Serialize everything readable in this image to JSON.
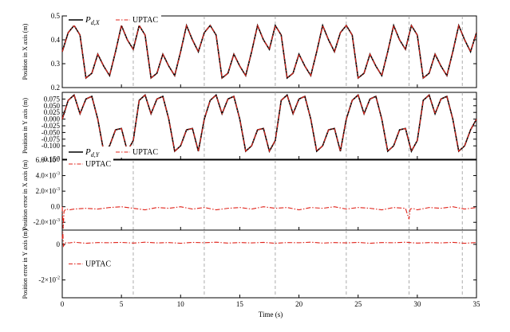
{
  "chart_data": [
    {
      "id": "px",
      "type": "line",
      "ylabel": "Position in X axis (m)",
      "xlim": [
        0,
        35
      ],
      "ylim": [
        0.2,
        0.5
      ],
      "yticks": [
        0.2,
        0.3,
        0.4,
        0.5
      ],
      "ytick_labels": [
        "0.2",
        "0.3",
        "0.4",
        "0.5"
      ],
      "legend": {
        "placement": "top-left",
        "entries": [
          {
            "sym": "P",
            "sub": "d,X",
            "style": "solid-black"
          },
          {
            "text": "UPTAC",
            "style": "dashdot-red"
          }
        ]
      },
      "series": [
        {
          "name": "Pd,X",
          "color": "#000000",
          "style": "solid",
          "x": [
            0,
            0.5,
            1,
            1.5,
            2,
            2.5,
            3,
            3.5,
            4,
            4.5,
            5,
            5.5,
            6,
            6.5,
            7,
            7.5,
            8,
            8.5,
            9,
            9.5,
            10,
            10.5,
            11,
            11.5,
            12,
            12.5,
            13,
            13.5,
            14,
            14.5,
            15,
            15.5,
            16,
            16.5,
            17,
            17.5,
            18,
            18.5,
            19,
            19.5,
            20,
            20.5,
            21,
            21.5,
            22,
            22.5,
            23,
            23.5,
            24,
            24.5,
            25,
            25.5,
            26,
            26.5,
            27,
            27.5,
            28,
            28.5,
            29,
            29.5,
            30,
            30.5,
            31,
            31.5,
            32,
            32.5,
            33,
            33.5,
            34,
            34.5,
            35
          ],
          "values": [
            0.35,
            0.43,
            0.46,
            0.42,
            0.24,
            0.26,
            0.34,
            0.29,
            0.25,
            0.35,
            0.46,
            0.4,
            0.36,
            0.46,
            0.42,
            0.24,
            0.26,
            0.34,
            0.29,
            0.25,
            0.35,
            0.46,
            0.4,
            0.35,
            0.43,
            0.46,
            0.42,
            0.24,
            0.26,
            0.34,
            0.29,
            0.25,
            0.35,
            0.46,
            0.4,
            0.36,
            0.46,
            0.42,
            0.24,
            0.26,
            0.34,
            0.29,
            0.25,
            0.35,
            0.46,
            0.4,
            0.35,
            0.43,
            0.46,
            0.42,
            0.24,
            0.26,
            0.34,
            0.29,
            0.25,
            0.35,
            0.46,
            0.4,
            0.36,
            0.46,
            0.42,
            0.24,
            0.26,
            0.34,
            0.29,
            0.25,
            0.35,
            0.46,
            0.4,
            0.35,
            0.43
          ]
        },
        {
          "name": "UPTAC",
          "color": "#e0241b",
          "style": "dashdot",
          "x": [
            0,
            0.5,
            1,
            1.5,
            2,
            2.5,
            3,
            3.5,
            4,
            4.5,
            5,
            5.5,
            6,
            6.5,
            7,
            7.5,
            8,
            8.5,
            9,
            9.5,
            10,
            10.5,
            11,
            11.5,
            12,
            12.5,
            13,
            13.5,
            14,
            14.5,
            15,
            15.5,
            16,
            16.5,
            17,
            17.5,
            18,
            18.5,
            19,
            19.5,
            20,
            20.5,
            21,
            21.5,
            22,
            22.5,
            23,
            23.5,
            24,
            24.5,
            25,
            25.5,
            26,
            26.5,
            27,
            27.5,
            28,
            28.5,
            29,
            29.5,
            30,
            30.5,
            31,
            31.5,
            32,
            32.5,
            33,
            33.5,
            34,
            34.5,
            35
          ],
          "values": [
            0.35,
            0.43,
            0.46,
            0.42,
            0.24,
            0.26,
            0.34,
            0.29,
            0.25,
            0.35,
            0.46,
            0.4,
            0.36,
            0.46,
            0.42,
            0.24,
            0.26,
            0.34,
            0.29,
            0.25,
            0.35,
            0.46,
            0.4,
            0.35,
            0.43,
            0.46,
            0.42,
            0.24,
            0.26,
            0.34,
            0.29,
            0.25,
            0.35,
            0.46,
            0.4,
            0.36,
            0.46,
            0.42,
            0.24,
            0.26,
            0.34,
            0.29,
            0.25,
            0.35,
            0.46,
            0.4,
            0.35,
            0.43,
            0.46,
            0.42,
            0.24,
            0.26,
            0.34,
            0.29,
            0.25,
            0.35,
            0.46,
            0.4,
            0.36,
            0.46,
            0.42,
            0.24,
            0.26,
            0.34,
            0.29,
            0.25,
            0.35,
            0.46,
            0.4,
            0.35,
            0.43
          ]
        }
      ]
    },
    {
      "id": "py",
      "type": "line",
      "ylabel": "Position in Y axis (m)",
      "xlim": [
        0,
        35
      ],
      "ylim": [
        -0.15,
        0.1
      ],
      "yticks": [
        -0.15,
        -0.1,
        -0.075,
        -0.05,
        -0.025,
        0,
        0.025,
        0.05,
        0.075
      ],
      "ytick_labels": [
        "-0.150",
        "-0.100",
        "-0.075",
        "-0.050",
        "-0.025",
        "0.000",
        "0.025",
        "0.050",
        "0.075"
      ],
      "legend": {
        "placement": "bottom-left",
        "entries": [
          {
            "sym": "P",
            "sub": "d,Y",
            "style": "solid-black"
          },
          {
            "text": "UPTAC",
            "style": "dashdot-red"
          }
        ]
      },
      "series": [
        {
          "name": "Pd,Y",
          "color": "#000000",
          "style": "solid",
          "x": [
            0,
            0.5,
            1,
            1.5,
            2,
            2.5,
            3,
            3.5,
            4,
            4.5,
            5,
            5.5,
            6,
            6.5,
            7,
            7.5,
            8,
            8.5,
            9,
            9.5,
            10,
            10.5,
            11,
            11.5,
            12,
            12.5,
            13,
            13.5,
            14,
            14.5,
            15,
            15.5,
            16,
            16.5,
            17,
            17.5,
            18,
            18.5,
            19,
            19.5,
            20,
            20.5,
            21,
            21.5,
            22,
            22.5,
            23,
            23.5,
            24,
            24.5,
            25,
            25.5,
            26,
            26.5,
            27,
            27.5,
            28,
            28.5,
            29,
            29.5,
            30,
            30.5,
            31,
            31.5,
            32,
            32.5,
            33,
            33.5,
            34,
            34.5,
            35
          ],
          "values": [
            0,
            0.07,
            0.09,
            0.02,
            0.075,
            0.085,
            0,
            -0.12,
            -0.1,
            -0.04,
            -0.035,
            -0.12,
            -0.08,
            0.07,
            0.09,
            0.02,
            0.075,
            0.085,
            0,
            -0.12,
            -0.1,
            -0.04,
            -0.035,
            -0.12,
            0,
            0.07,
            0.09,
            0.02,
            0.075,
            0.085,
            0,
            -0.12,
            -0.1,
            -0.04,
            -0.035,
            -0.12,
            -0.08,
            0.07,
            0.09,
            0.02,
            0.075,
            0.085,
            0,
            -0.12,
            -0.1,
            -0.04,
            -0.035,
            -0.12,
            0,
            0.07,
            0.09,
            0.02,
            0.075,
            0.085,
            0,
            -0.12,
            -0.1,
            -0.04,
            -0.035,
            -0.12,
            -0.08,
            0.07,
            0.09,
            0.02,
            0.075,
            0.085,
            0,
            -0.12,
            -0.1,
            -0.04,
            0
          ]
        },
        {
          "name": "UPTAC",
          "color": "#e0241b",
          "style": "dashdot",
          "x": [
            0,
            0.5,
            1,
            1.5,
            2,
            2.5,
            3,
            3.5,
            4,
            4.5,
            5,
            5.5,
            6,
            6.5,
            7,
            7.5,
            8,
            8.5,
            9,
            9.5,
            10,
            10.5,
            11,
            11.5,
            12,
            12.5,
            13,
            13.5,
            14,
            14.5,
            15,
            15.5,
            16,
            16.5,
            17,
            17.5,
            18,
            18.5,
            19,
            19.5,
            20,
            20.5,
            21,
            21.5,
            22,
            22.5,
            23,
            23.5,
            24,
            24.5,
            25,
            25.5,
            26,
            26.5,
            27,
            27.5,
            28,
            28.5,
            29,
            29.5,
            30,
            30.5,
            31,
            31.5,
            32,
            32.5,
            33,
            33.5,
            34,
            34.5,
            35
          ],
          "values": [
            0,
            0.07,
            0.09,
            0.02,
            0.075,
            0.085,
            0,
            -0.12,
            -0.1,
            -0.04,
            -0.035,
            -0.12,
            -0.08,
            0.07,
            0.09,
            0.02,
            0.075,
            0.085,
            0,
            -0.12,
            -0.1,
            -0.04,
            -0.035,
            -0.12,
            0,
            0.07,
            0.09,
            0.02,
            0.075,
            0.085,
            0,
            -0.12,
            -0.1,
            -0.04,
            -0.035,
            -0.12,
            -0.08,
            0.07,
            0.09,
            0.02,
            0.075,
            0.085,
            0,
            -0.12,
            -0.1,
            -0.04,
            -0.035,
            -0.12,
            0,
            0.07,
            0.09,
            0.02,
            0.075,
            0.085,
            0,
            -0.12,
            -0.1,
            -0.04,
            -0.035,
            -0.12,
            -0.08,
            0.07,
            0.09,
            0.02,
            0.075,
            0.085,
            0,
            -0.12,
            -0.1,
            -0.04,
            0
          ]
        }
      ]
    },
    {
      "id": "ex",
      "type": "line",
      "ylabel": "Position error in X axis (m)",
      "xlim": [
        0,
        35
      ],
      "ylim": [
        -0.003,
        0.006
      ],
      "yticks": [
        -0.002,
        0,
        0.002,
        0.004,
        0.006
      ],
      "ytick_labels": [
        {
          "m": "-2.0",
          "e": "-3"
        },
        {
          "m": "0.0",
          "e": ""
        },
        {
          "m": "2.0",
          "e": "-3"
        },
        {
          "m": "4.0",
          "e": "-3"
        },
        {
          "m": "6.0",
          "e": "-3"
        }
      ],
      "legend": {
        "placement": "top-left",
        "entries": [
          {
            "text": "UPTAC",
            "style": "dashdot-red"
          }
        ]
      },
      "series": [
        {
          "name": "UPTAC",
          "color": "#e0241b",
          "style": "dashdot",
          "x": [
            0,
            0.08,
            0.15,
            0.3,
            0.6,
            1,
            2,
            3,
            4,
            5,
            6,
            7,
            8,
            9,
            10,
            11,
            12,
            13,
            14,
            15,
            16,
            17,
            18,
            19,
            20,
            21,
            22,
            23,
            24,
            25,
            26,
            27,
            28,
            29,
            29.3,
            29.4,
            29.6,
            30,
            31,
            32,
            33,
            34,
            35
          ],
          "values": [
            0,
            -0.0028,
            -0.0006,
            -0.0003,
            -0.0004,
            -0.0003,
            -0.0002,
            -0.0003,
            -0.0001,
            0,
            -0.0002,
            -0.0004,
            -0.0001,
            -0.0002,
            0,
            -0.0003,
            -0.0001,
            -0.0004,
            -0.0002,
            -0.0001,
            -0.0003,
            0,
            -0.0002,
            -0.0001,
            -0.0004,
            -0.0001,
            -0.0002,
            0,
            -0.0003,
            -0.0001,
            -0.0002,
            -0.0004,
            -0.0001,
            -0.0002,
            -0.0016,
            -0.0003,
            -0.0002,
            -0.0004,
            -0.0001,
            -0.0002,
            0,
            -0.0003,
            -0.0001
          ]
        }
      ]
    },
    {
      "id": "ey",
      "type": "line",
      "ylabel": "Position error in Y axis (m)",
      "xlabel": "Time (s)",
      "xlim": [
        0,
        35
      ],
      "ylim": [
        -0.03,
        0.008
      ],
      "xticks": [
        0,
        5,
        10,
        15,
        20,
        25,
        30,
        35
      ],
      "yticks": [
        -0.02,
        0
      ],
      "ytick_labels": [
        {
          "m": "-2",
          "e": "-2"
        },
        {
          "m": "0",
          "e": ""
        }
      ],
      "legend": {
        "placement": "left",
        "entries": [
          {
            "text": "UPTAC",
            "style": "dashdot-red"
          }
        ]
      },
      "series": [
        {
          "name": "UPTAC",
          "color": "#e0241b",
          "style": "dashdot",
          "x": [
            0,
            0.05,
            0.1,
            0.3,
            0.6,
            1,
            2,
            3,
            4,
            5,
            6,
            7,
            8,
            9,
            10,
            11,
            12,
            13,
            14,
            15,
            16,
            17,
            18,
            19,
            20,
            21,
            22,
            23,
            24,
            25,
            26,
            27,
            28,
            29,
            30,
            31,
            32,
            33,
            34,
            35
          ],
          "values": [
            0.003,
            0.007,
            -0.001,
            0.001,
            0.0008,
            0.0012,
            0.0006,
            0.001,
            0.0009,
            0.0011,
            0.0007,
            0.0012,
            0.0008,
            0.001,
            0.0006,
            0.0011,
            0.0009,
            0.0012,
            0.0007,
            0.001,
            0.0008,
            0.0011,
            0.0006,
            0.001,
            0.0009,
            0.0012,
            0.0007,
            0.001,
            0.0008,
            0.0011,
            0.0006,
            0.001,
            0.0009,
            0.0012,
            0.0007,
            0.001,
            0.0008,
            0.0011,
            0.0006,
            0.001
          ]
        }
      ]
    }
  ],
  "vlines": [
    6,
    12,
    18,
    24,
    29.3,
    33.8
  ],
  "xticks": [
    0,
    5,
    10,
    15,
    20,
    25,
    30,
    35
  ],
  "xlabel": "Time (s)"
}
